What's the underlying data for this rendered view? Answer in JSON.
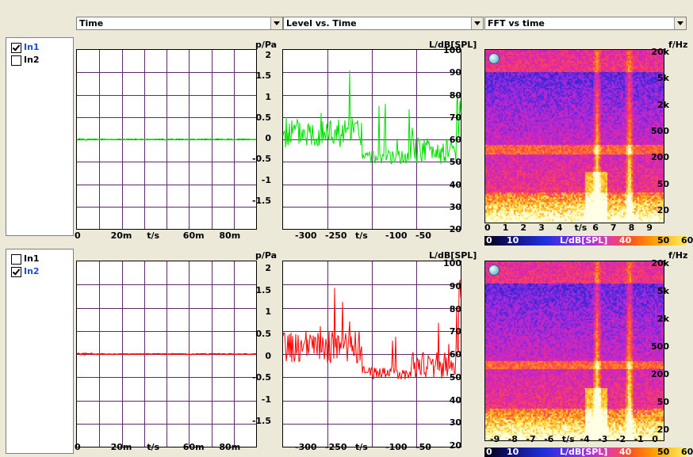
{
  "selectors": {
    "time": "Time",
    "level": "Level vs. Time",
    "fft": "FFT vs time"
  },
  "channels": {
    "top": [
      {
        "label": "In1",
        "checked": true
      },
      {
        "label": "In2",
        "checked": false
      }
    ],
    "bottom": [
      {
        "label": "In1",
        "checked": false
      },
      {
        "label": "In2",
        "checked": true
      }
    ]
  },
  "time_plot": {
    "ylabel": "p/Pa",
    "yticks": [
      "2",
      "1.5",
      "1",
      "0.5",
      "0",
      "-0.5",
      "-1",
      "-1.5"
    ],
    "xticks": [
      "0",
      "20m",
      "t/s",
      "60m",
      "80m"
    ]
  },
  "level_plot": {
    "ylabel": "L/dB[SPL]",
    "yticks": [
      "100",
      "90",
      "80",
      "70",
      "60",
      "50",
      "40",
      "30",
      "20"
    ],
    "xticks": [
      "-300",
      "-250",
      "t/s",
      "-100",
      "-50"
    ]
  },
  "fft_plot": {
    "ylabel": "f/Hz",
    "yticks": [
      "20k",
      "5k",
      "2k",
      "500",
      "200",
      "50",
      "20"
    ],
    "xticks_top": [
      "0",
      "1",
      "2",
      "3",
      "4",
      "t/s",
      "6",
      "7",
      "8",
      "9"
    ],
    "xticks_bottom": [
      "-9",
      "-8",
      "-7",
      "-6",
      "t/s",
      "-4",
      "-3",
      "-2",
      "-1",
      "0"
    ],
    "colorbar": {
      "labels": [
        "0",
        "10",
        "L/dB[SPL]",
        "40",
        "50",
        "60"
      ]
    }
  },
  "colors": {
    "ch1": "#00e000",
    "ch2": "#ff0000",
    "grid": "#5a2a6a"
  },
  "chart_data": [
    {
      "type": "line",
      "title": "",
      "xlabel": "t/s",
      "ylabel": "p/Pa",
      "ylim": [
        -2,
        2
      ],
      "series": [
        {
          "name": "In1",
          "values": [
            0.0
          ]
        }
      ]
    },
    {
      "type": "line",
      "title": "",
      "xlabel": "t/s",
      "ylabel": "L/dB[SPL]",
      "ylim": [
        20,
        100
      ],
      "series": [
        {
          "name": "In1",
          "values": []
        }
      ]
    },
    {
      "type": "line",
      "title": "",
      "xlabel": "t/s",
      "ylabel": "p/Pa",
      "ylim": [
        -2,
        2
      ],
      "series": [
        {
          "name": "In2",
          "values": [
            0.0
          ]
        }
      ]
    },
    {
      "type": "line",
      "title": "",
      "xlabel": "t/s",
      "ylabel": "L/dB[SPL]",
      "ylim": [
        20,
        100
      ],
      "series": [
        {
          "name": "In2",
          "values": []
        }
      ]
    }
  ]
}
